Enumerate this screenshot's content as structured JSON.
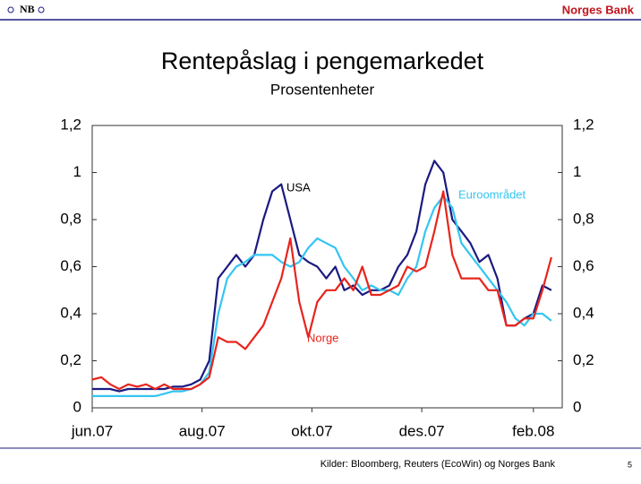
{
  "header": {
    "logo": "NB",
    "brand": "Norges Bank"
  },
  "chart_data": {
    "type": "line",
    "title": "Rentepåslag i pengemarkedet",
    "subtitle": "Prosentenheter",
    "x": [
      0,
      5,
      10,
      15,
      20,
      25,
      30,
      35,
      40,
      45,
      50,
      55,
      60,
      65,
      70,
      75,
      80,
      85,
      90,
      95,
      100,
      105,
      110,
      115,
      120,
      125,
      130,
      135,
      140,
      145,
      150,
      155,
      160,
      165,
      170,
      175,
      180,
      185,
      190,
      195,
      200,
      205,
      210,
      215,
      220,
      225,
      230,
      235,
      240,
      245,
      250,
      255
    ],
    "xlim": [
      0,
      261
    ],
    "xticks": [
      {
        "value": 0,
        "label": "jun.07"
      },
      {
        "value": 61,
        "label": "aug.07"
      },
      {
        "value": 122,
        "label": "okt.07"
      },
      {
        "value": 183,
        "label": "des.07"
      },
      {
        "value": 245,
        "label": "feb.08"
      }
    ],
    "ylim": [
      0,
      1.2
    ],
    "yticks": [
      0,
      {
        "value": 0.2,
        "label": "0,2"
      },
      {
        "value": 0.4,
        "label": "0,4"
      },
      {
        "value": 0.6,
        "label": "0,6"
      },
      {
        "value": 0.8,
        "label": "0,8"
      },
      1,
      {
        "value": 1.2,
        "label": "1,2"
      }
    ],
    "y2lim": [
      0,
      1.2
    ],
    "y2ticks": [
      0,
      {
        "value": 0.2,
        "label": "0,2"
      },
      {
        "value": 0.4,
        "label": "0,4"
      },
      {
        "value": 0.6,
        "label": "0,6"
      },
      {
        "value": 0.8,
        "label": "0,8"
      },
      1,
      {
        "value": 1.2,
        "label": "1,2"
      }
    ],
    "series": [
      {
        "name": "USA",
        "color": "#1a1a80",
        "values": [
          0.08,
          0.08,
          0.08,
          0.07,
          0.08,
          0.08,
          0.08,
          0.08,
          0.08,
          0.09,
          0.09,
          0.1,
          0.12,
          0.2,
          0.55,
          0.6,
          0.65,
          0.6,
          0.65,
          0.8,
          0.92,
          0.95,
          0.8,
          0.65,
          0.62,
          0.6,
          0.55,
          0.6,
          0.5,
          0.52,
          0.48,
          0.5,
          0.5,
          0.52,
          0.6,
          0.65,
          0.75,
          0.95,
          1.05,
          1.0,
          0.8,
          0.75,
          0.7,
          0.62,
          0.65,
          0.55,
          0.35,
          0.35,
          0.38,
          0.4,
          0.52,
          0.5
        ]
      },
      {
        "name": "Euroområdet",
        "color": "#33c5f0",
        "values": [
          0.05,
          0.05,
          0.05,
          0.05,
          0.05,
          0.05,
          0.05,
          0.05,
          0.06,
          0.07,
          0.07,
          0.08,
          0.1,
          0.15,
          0.4,
          0.55,
          0.6,
          0.62,
          0.65,
          0.65,
          0.65,
          0.62,
          0.6,
          0.62,
          0.68,
          0.72,
          0.7,
          0.68,
          0.6,
          0.55,
          0.5,
          0.52,
          0.5,
          0.5,
          0.48,
          0.55,
          0.6,
          0.75,
          0.85,
          0.9,
          0.85,
          0.7,
          0.65,
          0.6,
          0.55,
          0.5,
          0.45,
          0.38,
          0.35,
          0.4,
          0.4,
          0.37
        ]
      },
      {
        "name": "Norge",
        "color": "#e8241c",
        "values": [
          0.12,
          0.13,
          0.1,
          0.08,
          0.1,
          0.09,
          0.1,
          0.08,
          0.1,
          0.08,
          0.08,
          0.08,
          0.1,
          0.13,
          0.3,
          0.28,
          0.28,
          0.25,
          0.3,
          0.35,
          0.45,
          0.55,
          0.72,
          0.45,
          0.3,
          0.45,
          0.5,
          0.5,
          0.55,
          0.5,
          0.6,
          0.48,
          0.48,
          0.5,
          0.52,
          0.6,
          0.58,
          0.6,
          0.75,
          0.92,
          0.65,
          0.55,
          0.55,
          0.55,
          0.5,
          0.5,
          0.35,
          0.35,
          0.38,
          0.38,
          0.5,
          0.64
        ]
      }
    ]
  },
  "footer": {
    "source": "Kilder: Bloomberg, Reuters (EcoWin) og Norges Bank",
    "page": "5"
  }
}
